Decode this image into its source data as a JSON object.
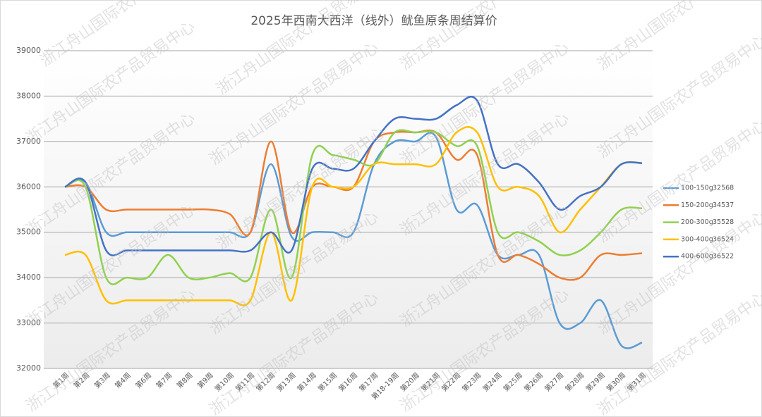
{
  "chart_data": {
    "type": "line",
    "title": "2025年西南大西洋（线外）鱿鱼原条周结算价",
    "watermark": "浙江舟山国际农产品贸易中心",
    "categories": [
      "第1周",
      "第2周",
      "第3周",
      "第4周",
      "第6周",
      "第7周",
      "第8周",
      "第9周",
      "第10周",
      "第11周",
      "第12周",
      "第13周",
      "第14周",
      "第15周",
      "第16周",
      "第17周",
      "第18-19周",
      "第20周",
      "第21周",
      "第22周",
      "第23周",
      "第24周",
      "第25周",
      "第26周",
      "第27周",
      "第28周",
      "第29周",
      "第30周",
      "第31周"
    ],
    "series": [
      {
        "name": "100-150g",
        "color": "#5b9bd5",
        "values": [
          36000,
          36100,
          35000,
          35000,
          35000,
          35000,
          35000,
          35000,
          35000,
          35000,
          36500,
          34900,
          35000,
          35000,
          35000,
          36500,
          37000,
          37000,
          37100,
          35500,
          35600,
          34500,
          34500,
          34500,
          33000,
          33000,
          33500,
          32500,
          32568
        ]
      },
      {
        "name": "150-200g",
        "color": "#ed7d31",
        "values": [
          36000,
          36000,
          35500,
          35500,
          35500,
          35500,
          35500,
          35500,
          35400,
          35000,
          37000,
          35000,
          36000,
          36000,
          36000,
          37000,
          37200,
          37200,
          37200,
          36600,
          36700,
          34500,
          34500,
          34300,
          34000,
          34000,
          34500,
          34500,
          34537
        ]
      },
      {
        "name": "200-300g",
        "color": "#8fd14f",
        "values": [
          36000,
          36000,
          34000,
          34000,
          34000,
          34500,
          34000,
          34000,
          34100,
          34000,
          35500,
          34000,
          36700,
          36700,
          36600,
          36500,
          37200,
          37200,
          37200,
          36900,
          36900,
          35000,
          35000,
          34800,
          34500,
          34600,
          35000,
          35500,
          35528
        ]
      },
      {
        "name": "300-400g",
        "color": "#ffc000",
        "values": [
          34500,
          34500,
          33500,
          33500,
          33500,
          33500,
          33500,
          33500,
          33500,
          33500,
          35000,
          33500,
          36000,
          36000,
          36000,
          36500,
          36500,
          36500,
          36500,
          37200,
          37200,
          36000,
          36000,
          35800,
          35000,
          35500,
          36000,
          36500,
          36524
        ]
      },
      {
        "name": "400-600g",
        "color": "#4472c4",
        "values": [
          36000,
          36100,
          34600,
          34600,
          34600,
          34600,
          34600,
          34600,
          34600,
          34600,
          35000,
          34600,
          36400,
          36400,
          36400,
          37000,
          37500,
          37500,
          37500,
          37800,
          37900,
          36500,
          36500,
          36100,
          35500,
          35800,
          36000,
          36500,
          36522
        ]
      }
    ],
    "ylim": [
      32000,
      39000
    ],
    "yticks": [
      32000,
      33000,
      34000,
      35000,
      36000,
      37000,
      38000,
      39000
    ],
    "grid": true,
    "legend": "right"
  }
}
